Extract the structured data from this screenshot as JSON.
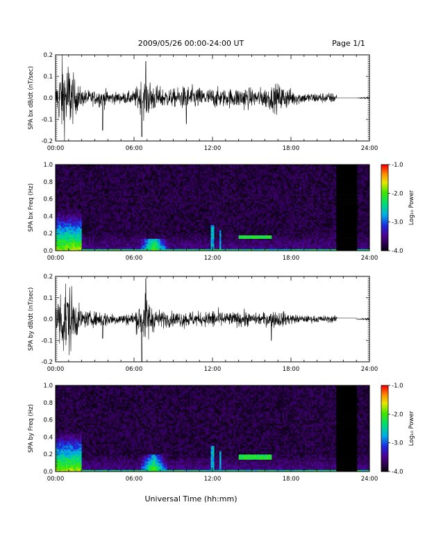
{
  "header": {
    "title": "2009/05/26  00:00-24:00 UT",
    "page": "Page 1/1"
  },
  "footer": {
    "xlabel": "Universal Time (hh:mm)"
  },
  "chart_data": [
    {
      "type": "line",
      "ylabel": "SPA bx dB/dt (nT/sec)",
      "xlim": [
        0,
        24
      ],
      "ylim": [
        -0.2,
        0.2
      ],
      "xticks": [
        "00:00",
        "06:00",
        "12:00",
        "18:00",
        "24:00"
      ],
      "yticks": [
        "0.2",
        "0.1",
        "0.0",
        "-0.1",
        "-0.2"
      ],
      "envelope": {
        "x": [
          0,
          0.5,
          1.0,
          1.5,
          2.0,
          3.0,
          3.6,
          4.0,
          5.0,
          6.0,
          6.5,
          7.0,
          7.5,
          8.0,
          9.0,
          10.0,
          11.0,
          11.5,
          12.0,
          13.0,
          14.0,
          14.5,
          15.0,
          16.0,
          17.0,
          17.5,
          18.0,
          19.0,
          20.0,
          21.5,
          22.0,
          23.0,
          24.0
        ],
        "amplitude": [
          0.06,
          0.22,
          0.22,
          0.1,
          0.05,
          0.04,
          0.06,
          0.04,
          0.03,
          0.04,
          0.1,
          0.12,
          0.08,
          0.06,
          0.05,
          0.07,
          0.06,
          0.05,
          0.06,
          0.05,
          0.06,
          0.07,
          0.05,
          0.06,
          0.08,
          0.07,
          0.05,
          0.03,
          0.03,
          0.03,
          0.0,
          0.0,
          0.01
        ]
      },
      "spikes": [
        {
          "x": 3.6,
          "y": -0.15
        },
        {
          "x": 6.6,
          "y": -0.18
        },
        {
          "x": 6.9,
          "y": 0.17
        },
        {
          "x": 10.0,
          "y": -0.12
        }
      ],
      "flat_segment": {
        "x": [
          21.5,
          23.0
        ],
        "y": 0.0
      }
    },
    {
      "type": "heatmap",
      "ylabel": "SPA bx Freq (Hz)",
      "xlim": [
        0,
        24
      ],
      "ylim": [
        0.0,
        1.0
      ],
      "xticks": [
        "00:00",
        "06:00",
        "12:00",
        "18:00",
        "24:00"
      ],
      "yticks": [
        "1.0",
        "0.8",
        "0.6",
        "0.4",
        "0.2",
        "0.0"
      ],
      "colorbar": {
        "label": "Log₁₀ Power",
        "ticks": [
          "-1.0",
          "-2.0",
          "-3.0",
          "-4.0"
        ],
        "range": [
          -4.0,
          -1.0
        ]
      },
      "features": [
        {
          "kind": "broadband",
          "x": [
            0.0,
            2.0
          ],
          "f_max": 0.5,
          "peak": -1.6
        },
        {
          "kind": "band",
          "x": [
            6.5,
            8.5
          ],
          "f_max": 0.15,
          "peak": -2.0
        },
        {
          "kind": "spike",
          "x": 12.0,
          "f_max": 0.3
        },
        {
          "kind": "spike",
          "x": 12.6,
          "f_max": 0.25
        },
        {
          "kind": "tone",
          "x": [
            14.0,
            16.5
          ],
          "f": 0.16,
          "peak": -2.3
        },
        {
          "kind": "gap",
          "x": [
            21.5,
            23.0
          ]
        }
      ]
    },
    {
      "type": "line",
      "ylabel": "SPA by dB/dt (nT/sec)",
      "xlim": [
        0,
        24
      ],
      "ylim": [
        -0.2,
        0.2
      ],
      "xticks": [
        "00:00",
        "06:00",
        "12:00",
        "18:00",
        "24:00"
      ],
      "yticks": [
        "0.2",
        "0.1",
        "0.0",
        "-0.1",
        "-0.2"
      ],
      "envelope": {
        "x": [
          0,
          0.5,
          1.0,
          1.5,
          2.0,
          3.0,
          3.6,
          4.0,
          5.0,
          6.0,
          6.5,
          7.0,
          7.5,
          8.0,
          9.0,
          10.0,
          11.0,
          11.5,
          12.0,
          13.0,
          14.0,
          14.5,
          15.0,
          16.0,
          17.0,
          17.5,
          18.0,
          19.0,
          20.0,
          21.5,
          22.0,
          23.0,
          24.0
        ],
        "amplitude": [
          0.08,
          0.22,
          0.22,
          0.12,
          0.05,
          0.04,
          0.05,
          0.04,
          0.03,
          0.04,
          0.12,
          0.14,
          0.07,
          0.05,
          0.04,
          0.05,
          0.04,
          0.04,
          0.06,
          0.04,
          0.04,
          0.05,
          0.03,
          0.04,
          0.05,
          0.04,
          0.03,
          0.02,
          0.02,
          0.02,
          0.0,
          0.0,
          0.01
        ]
      },
      "spikes": [
        {
          "x": 3.6,
          "y": -0.09
        },
        {
          "x": 6.6,
          "y": -0.2
        },
        {
          "x": 6.9,
          "y": 0.19
        },
        {
          "x": 16.5,
          "y": -0.1
        }
      ],
      "flat_segment": {
        "x": [
          21.5,
          23.0
        ],
        "y": 0.005
      }
    },
    {
      "type": "heatmap",
      "ylabel": "SPA by Freq (Hz)",
      "xlim": [
        0,
        24
      ],
      "ylim": [
        0.0,
        1.0
      ],
      "xticks": [
        "00:00",
        "06:00",
        "12:00",
        "18:00",
        "24:00"
      ],
      "yticks": [
        "1.0",
        "0.8",
        "0.6",
        "0.4",
        "0.2",
        "0.0"
      ],
      "colorbar": {
        "label": "Log₁₀ Power",
        "ticks": [
          "-1.0",
          "-2.0",
          "-3.0",
          "-4.0"
        ],
        "range": [
          -4.0,
          -1.0
        ]
      },
      "features": [
        {
          "kind": "broadband",
          "x": [
            0.0,
            2.0
          ],
          "f_max": 0.5,
          "peak": -1.6
        },
        {
          "kind": "band",
          "x": [
            6.5,
            8.5
          ],
          "f_max": 0.2,
          "peak": -2.0
        },
        {
          "kind": "spike",
          "x": 12.0,
          "f_max": 0.3
        },
        {
          "kind": "spike",
          "x": 12.6,
          "f_max": 0.25
        },
        {
          "kind": "tone",
          "x": [
            14.0,
            16.5
          ],
          "f": 0.17,
          "peak": -2.3
        },
        {
          "kind": "gap",
          "x": [
            21.5,
            23.0
          ]
        }
      ]
    }
  ]
}
